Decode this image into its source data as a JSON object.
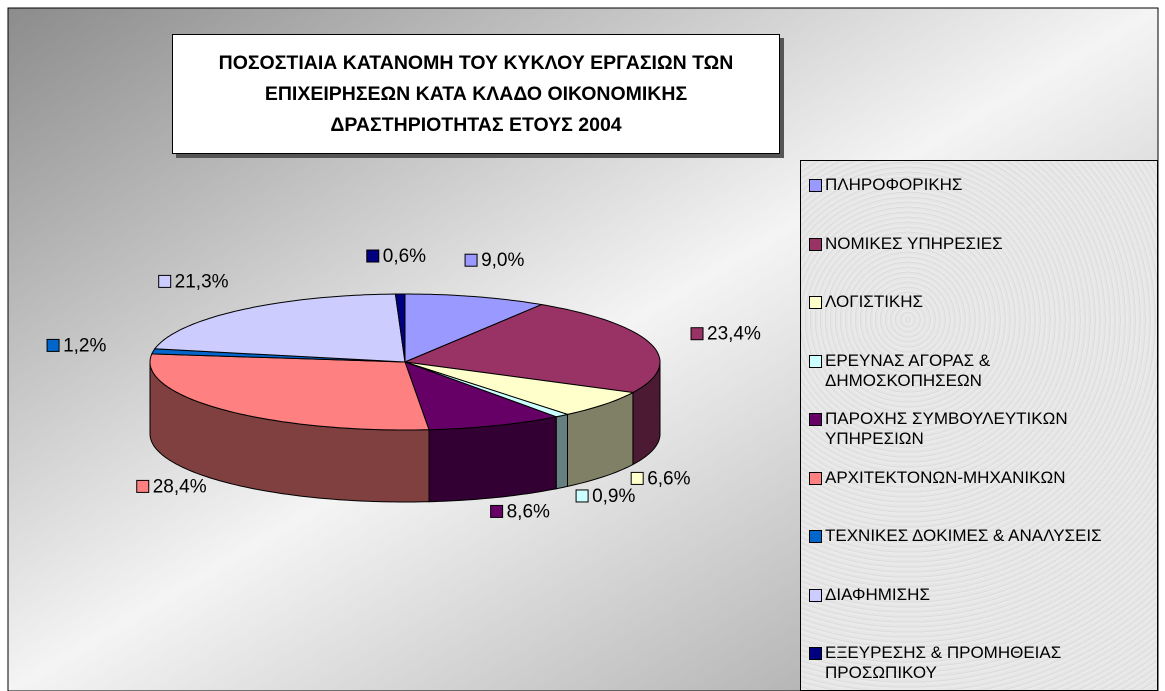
{
  "chart_data": {
    "type": "pie",
    "title": "ΠΟΣΟΣΤΙΑΙΑ ΚΑΤΑΝΟΜΗ ΤΟΥ ΚΥΚΛΟΥ ΕΡΓΑΣΙΩΝ ΤΩΝ ΕΠΙΧΕΙΡΗΣΕΩΝ ΚΑΤΑ ΚΛΑΔΟ ΟΙΚΟΝΟΜΙΚΗΣ ΔΡΑΣΤΗΡΙΟΤΗΤΑΣ ΕΤΟΥΣ 2004",
    "categories": [
      "ΠΛΗΡΟΦΟΡΙΚΗΣ",
      "ΝΟΜΙΚΕΣ ΥΠΗΡΕΣΙΕΣ",
      "ΛΟΓΙΣΤΙΚΗΣ",
      "ΕΡΕΥΝΑΣ ΑΓΟΡΑΣ & ΔΗΜΟΣΚΟΠΗΣΕΩΝ",
      "ΠΑΡΟΧΗΣ ΣΥΜΒΟΥΛΕΥΤΙΚΩΝ ΥΠΗΡΕΣΙΩΝ",
      "ΑΡΧΙΤΕΚΤΟΝΩΝ-ΜΗΧΑΝΙΚΩΝ",
      "ΤΕΧΝΙΚΕΣ ΔΟΚΙΜΕΣ & ΑΝΑΛΥΣΕΙΣ",
      "ΔΙΑΦΗΜΙΣΗΣ",
      "ΕΞΕΥΡΕΣΗΣ & ΠΡΟΜΗΘΕΙΑΣ ΠΡΟΣΩΠΙΚΟΥ"
    ],
    "values": [
      9.0,
      23.4,
      6.6,
      0.9,
      8.6,
      28.4,
      1.2,
      21.3,
      0.6
    ],
    "value_labels": [
      "9,0%",
      "23,4%",
      "6,6%",
      "0,9%",
      "8,6%",
      "28,4%",
      "1,2%",
      "21,3%",
      "0,6%"
    ],
    "colors": [
      "#9999ff",
      "#993366",
      "#ffffcc",
      "#ccffff",
      "#660066",
      "#ff8080",
      "#0066cc",
      "#ccccff",
      "#000080"
    ],
    "legend": "right"
  }
}
